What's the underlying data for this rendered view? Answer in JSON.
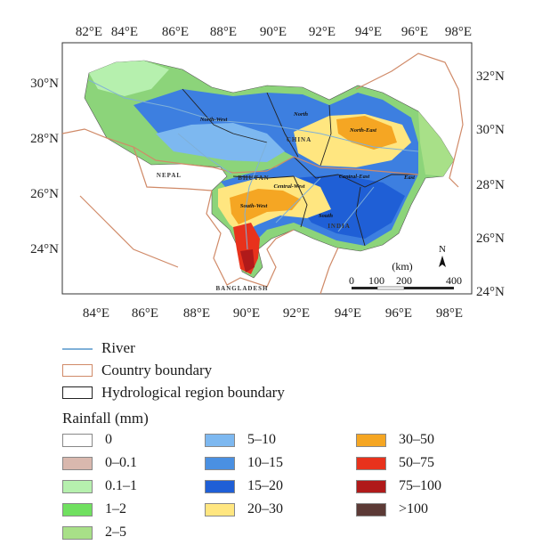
{
  "map": {
    "lon_labels": [
      "82°E",
      "84°E",
      "86°E",
      "88°E",
      "90°E",
      "92°E",
      "94°E",
      "96°E",
      "98°E"
    ],
    "lat_labels_left": [
      "30°N",
      "28°N",
      "26°N",
      "24°N"
    ],
    "lat_labels_right": [
      "32°N",
      "30°N",
      "28°N",
      "26°N",
      "24°N"
    ],
    "region_labels": [
      "North-West",
      "North",
      "North-East",
      "Central-West",
      "Central-East",
      "East",
      "South-West",
      "South"
    ],
    "country_labels": [
      "NEPAL",
      "CHINA",
      "BHUTAN",
      "INDIA",
      "BANGLADESH"
    ],
    "scale_bar": {
      "unit": "(km)",
      "ticks": [
        "0",
        "100",
        "200",
        "400"
      ]
    },
    "north_arrow": "N"
  },
  "legend": {
    "river": "River",
    "country_boundary": "Country boundary",
    "hydro_boundary": "Hydrological region boundary",
    "rainfall_title": "Rainfall (mm)",
    "classes": [
      {
        "label": "0",
        "color": "#ffffff"
      },
      {
        "label": "0–0.1",
        "color": "#d9b8ae"
      },
      {
        "label": "0.1–1",
        "color": "#b6f0ae"
      },
      {
        "label": "1–2",
        "color": "#70e060"
      },
      {
        "label": "2–5",
        "color": "#a8e088"
      },
      {
        "label": "5–10",
        "color": "#7db8f0"
      },
      {
        "label": "10–15",
        "color": "#4a90e2"
      },
      {
        "label": "15–20",
        "color": "#1f5fd6"
      },
      {
        "label": "20–30",
        "color": "#ffe680"
      },
      {
        "label": "30–50",
        "color": "#f5a623"
      },
      {
        "label": "50–75",
        "color": "#e8321c"
      },
      {
        "label": "75–100",
        "color": "#b01a1a"
      },
      {
        "label": ">100",
        "color": "#5c3a36"
      }
    ]
  },
  "colors": {
    "river": "#7fb0d8",
    "country_boundary": "#d08a68",
    "hydro_boundary": "#222222"
  }
}
